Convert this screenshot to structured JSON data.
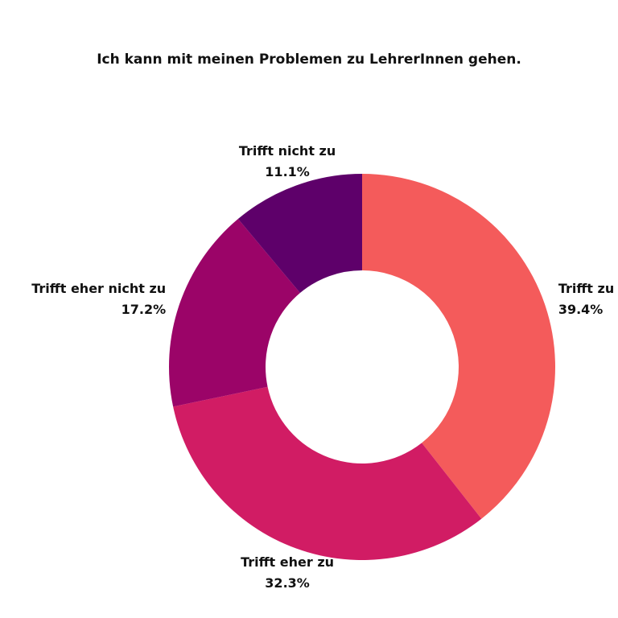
{
  "chart_data": {
    "type": "donut",
    "title": "Ich kann mit meinen Problemen zu LehrerInnen gehen.",
    "categories": [
      "Trifft zu",
      "Trifft eher zu",
      "Trifft eher nicht zu",
      "Trifft nicht zu"
    ],
    "values": [
      39.4,
      32.3,
      17.2,
      11.1
    ],
    "value_labels": [
      "39.4%",
      "32.3%",
      "17.2%",
      "11.1%"
    ],
    "colors": [
      "#f45b5b",
      "#d11c64",
      "#9b0468",
      "#5e006a"
    ]
  }
}
